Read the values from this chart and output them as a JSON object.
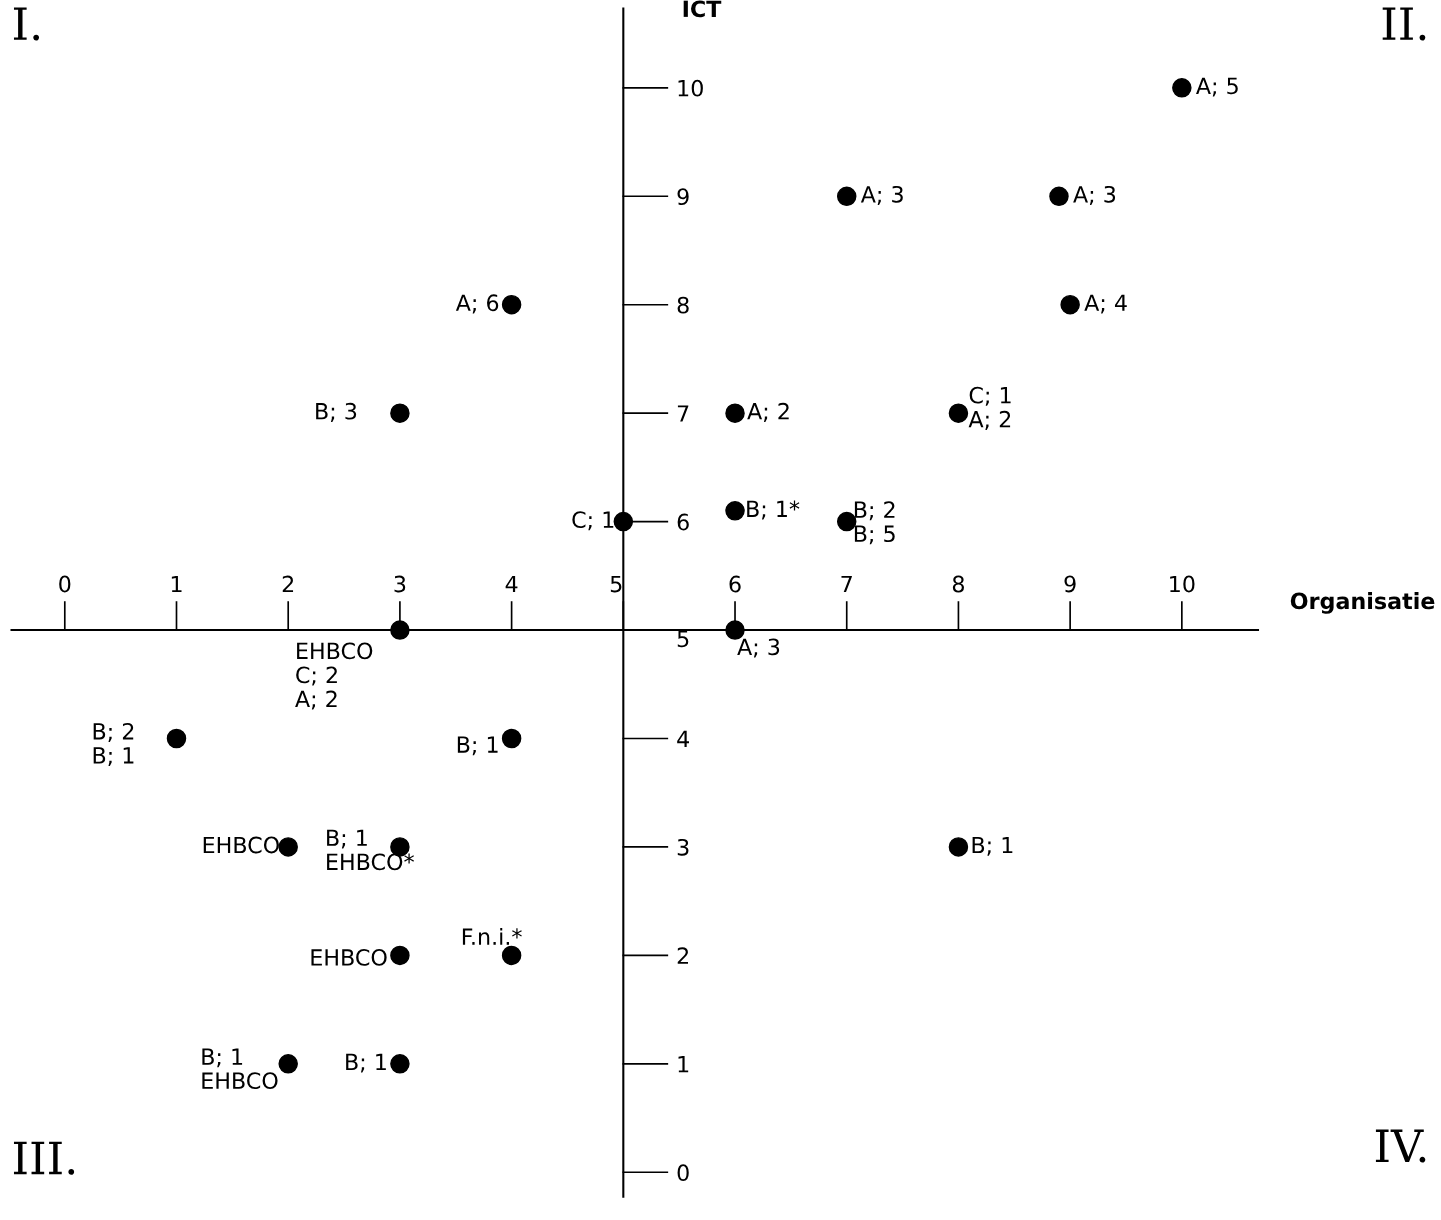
{
  "chart_data": {
    "type": "scatter",
    "xlabel": "Organisatie",
    "ylabel": "ICT",
    "x": [
      10,
      7,
      8.9,
      9,
      4,
      3,
      6,
      8,
      5,
      6,
      7,
      3,
      6,
      1,
      4,
      2,
      3,
      8,
      3,
      4,
      2,
      3
    ],
    "series": [
      {
        "color": "#000000",
        "values": [
          10,
          9,
          9,
          8,
          8,
          7,
          7,
          7,
          6,
          6.1,
          6,
          5,
          5,
          4,
          4,
          3,
          3,
          3,
          2,
          2,
          1,
          1
        ]
      }
    ],
    "marker": "circle",
    "grid": false,
    "legend": false,
    "xlim": [
      -0.58,
      12.32
    ],
    "ylim": [
      -0.44,
      10.81
    ],
    "xticks": [
      0,
      1,
      2,
      3,
      4,
      5,
      6,
      7,
      8,
      9,
      10
    ],
    "yticks": [
      0,
      1,
      2,
      3,
      4,
      5,
      6,
      7,
      8,
      9,
      10
    ],
    "annotations": [
      {
        "text": "A; 5",
        "x": 10,
        "y": 10
      },
      {
        "text": "A; 3",
        "x": 7,
        "y": 9
      },
      {
        "text": "A; 3",
        "x": 8.9,
        "y": 9
      },
      {
        "text": "A; 4",
        "x": 9,
        "y": 8
      },
      {
        "text": "A; 6",
        "x": 4,
        "y": 8
      },
      {
        "text": "B; 3",
        "x": 3,
        "y": 7
      },
      {
        "text": "A; 2",
        "x": 6,
        "y": 7
      },
      {
        "text": "C; 1\nA; 2",
        "x": 8,
        "y": 7
      },
      {
        "text": "C; 1",
        "x": 5,
        "y": 6
      },
      {
        "text": "B; 1*",
        "x": 6,
        "y": 6.1
      },
      {
        "text": "B; 2\nB; 5",
        "x": 7,
        "y": 6
      },
      {
        "text": "EHBCO\nC; 2\nA; 2",
        "x": 3,
        "y": 5
      },
      {
        "text": "A; 3",
        "x": 6,
        "y": 5
      },
      {
        "text": "B; 2\nB; 1",
        "x": 1,
        "y": 4
      },
      {
        "text": "B; 1",
        "x": 4,
        "y": 4
      },
      {
        "text": "EHBCO",
        "x": 2,
        "y": 3
      },
      {
        "text": "B; 1\nEHBCO*",
        "x": 3,
        "y": 3
      },
      {
        "text": "B; 1",
        "x": 8,
        "y": 3
      },
      {
        "text": "EHBCO",
        "x": 3,
        "y": 2
      },
      {
        "text": "F.n.i.*",
        "x": 4,
        "y": 2
      },
      {
        "text": "B; 1\nEHBCO",
        "x": 2,
        "y": 1
      },
      {
        "text": "B; 1",
        "x": 3,
        "y": 1
      },
      "I.",
      "II.",
      "III.",
      "IV."
    ]
  }
}
